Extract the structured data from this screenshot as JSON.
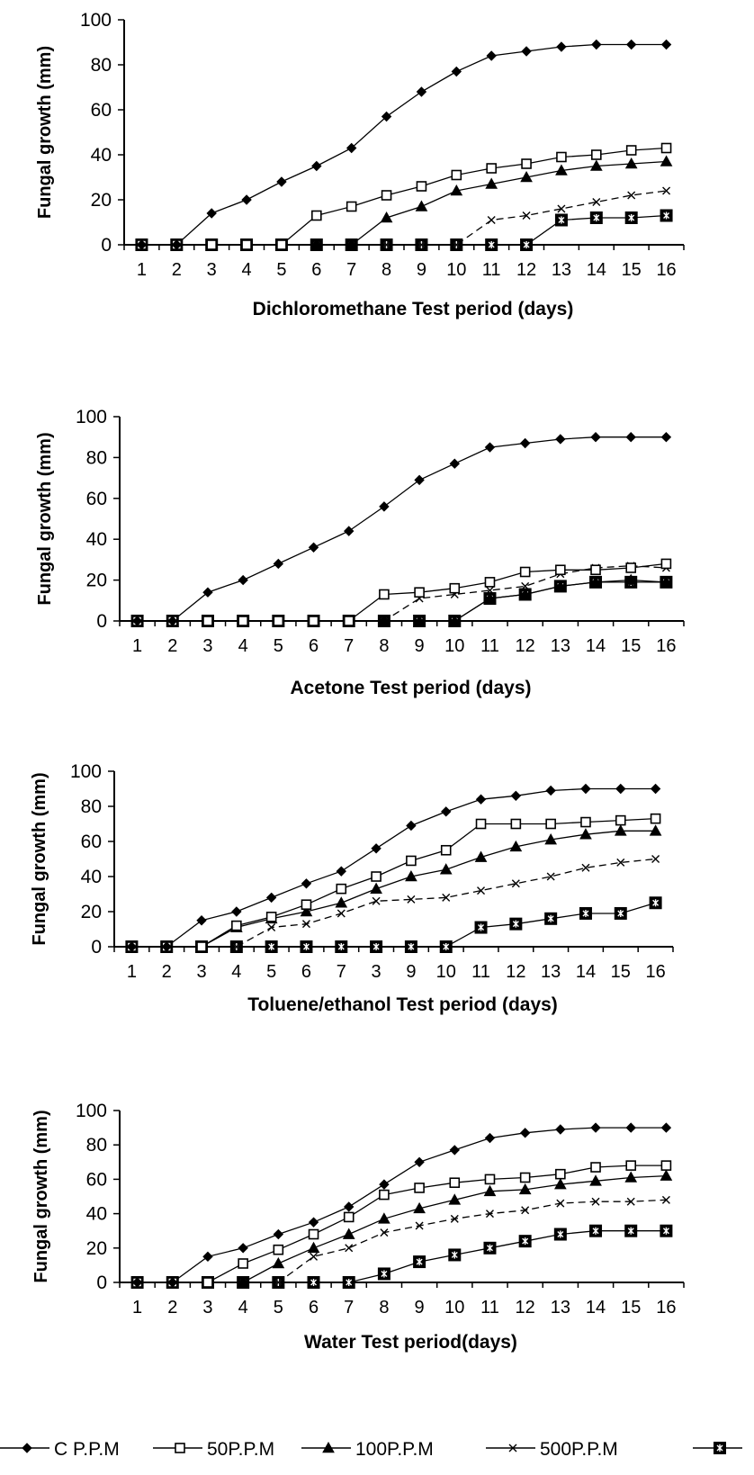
{
  "chart_data": [
    {
      "type": "line",
      "title": "",
      "xlabel": "Dichloromethane Test period (days)",
      "ylabel": "Fungal growth (mm)",
      "ylim": [
        0,
        100
      ],
      "yticks": [
        "0",
        "20",
        "40",
        "60",
        "80",
        "100"
      ],
      "categories": [
        "1",
        "2",
        "3",
        "4",
        "5",
        "6",
        "7",
        "8",
        "9",
        "10",
        "11",
        "12",
        "13",
        "14",
        "15",
        "16"
      ],
      "series": [
        {
          "name": "C P.P.M",
          "values": [
            0,
            0,
            14,
            20,
            28,
            35,
            43,
            57,
            68,
            77,
            84,
            86,
            88,
            89,
            89,
            89
          ]
        },
        {
          "name": "50P.P.M",
          "values": [
            0,
            0,
            0,
            0,
            0,
            13,
            17,
            22,
            26,
            31,
            34,
            36,
            39,
            40,
            42,
            43
          ]
        },
        {
          "name": "100P.P.M",
          "values": [
            0,
            0,
            0,
            0,
            0,
            0,
            0,
            12,
            17,
            24,
            27,
            30,
            33,
            35,
            36,
            37
          ]
        },
        {
          "name": "500P.P.M",
          "values": [
            0,
            0,
            0,
            0,
            0,
            0,
            0,
            0,
            0,
            0,
            11,
            13,
            16,
            19,
            22,
            24
          ]
        },
        {
          "name": "",
          "values": [
            0,
            0,
            0,
            0,
            0,
            0,
            0,
            0,
            0,
            0,
            0,
            0,
            11,
            12,
            12,
            13
          ]
        }
      ]
    },
    {
      "type": "line",
      "title": "",
      "xlabel": "Acetone Test period (days)",
      "ylabel": "Fungal growth (mm)",
      "ylim": [
        0,
        100
      ],
      "yticks": [
        "0",
        "20",
        "40",
        "60",
        "80",
        "100"
      ],
      "categories": [
        "1",
        "2",
        "3",
        "4",
        "5",
        "6",
        "7",
        "8",
        "9",
        "10",
        "11",
        "12",
        "13",
        "14",
        "15",
        "16"
      ],
      "series": [
        {
          "name": "C P.P.M",
          "values": [
            0,
            0,
            14,
            20,
            28,
            36,
            44,
            56,
            69,
            77,
            85,
            87,
            89,
            90,
            90,
            90
          ]
        },
        {
          "name": "50P.P.M",
          "values": [
            0,
            0,
            0,
            0,
            0,
            0,
            0,
            13,
            14,
            16,
            19,
            24,
            25,
            25,
            26,
            28
          ]
        },
        {
          "name": "100P.P.M",
          "values": [
            0,
            0,
            0,
            0,
            0,
            0,
            0,
            0,
            0,
            0,
            11,
            13,
            17,
            19,
            20,
            19
          ]
        },
        {
          "name": "500P.P.M",
          "values": [
            0,
            0,
            0,
            0,
            0,
            0,
            0,
            0,
            11,
            13,
            15,
            17,
            23,
            26,
            27,
            26
          ]
        },
        {
          "name": "",
          "values": [
            0,
            0,
            0,
            0,
            0,
            0,
            0,
            0,
            0,
            0,
            11,
            13,
            17,
            19,
            19,
            19
          ]
        }
      ]
    },
    {
      "type": "line",
      "title": "",
      "xlabel": "Toluene/ethanol Test period (days)",
      "ylabel": "Fungal growth (mm)",
      "ylim": [
        0,
        100
      ],
      "yticks": [
        "0",
        "20",
        "40",
        "60",
        "80",
        "100"
      ],
      "categories": [
        "1",
        "2",
        "3",
        "4",
        "5",
        "6",
        "7",
        "3",
        "9",
        "10",
        "11",
        "12",
        "13",
        "14",
        "15",
        "16"
      ],
      "series": [
        {
          "name": "C P.P.M",
          "values": [
            0,
            0,
            15,
            20,
            28,
            36,
            43,
            56,
            69,
            77,
            84,
            86,
            89,
            90,
            90,
            90
          ]
        },
        {
          "name": "50P.P.M",
          "values": [
            0,
            0,
            0,
            12,
            17,
            24,
            33,
            40,
            49,
            55,
            70,
            70,
            70,
            71,
            72,
            73
          ]
        },
        {
          "name": "100P.P.M",
          "values": [
            0,
            0,
            0,
            11,
            16,
            20,
            25,
            33,
            40,
            44,
            51,
            57,
            61,
            64,
            66,
            66
          ]
        },
        {
          "name": "500P.P.M",
          "values": [
            0,
            0,
            0,
            0,
            11,
            13,
            19,
            26,
            27,
            28,
            32,
            36,
            40,
            45,
            48,
            50
          ]
        },
        {
          "name": "",
          "values": [
            0,
            0,
            0,
            0,
            0,
            0,
            0,
            0,
            0,
            0,
            11,
            13,
            16,
            19,
            19,
            25
          ]
        }
      ]
    },
    {
      "type": "line",
      "title": "",
      "xlabel": "Water Test period(days)",
      "ylabel": "Fungal growth (mm)",
      "ylim": [
        0,
        100
      ],
      "yticks": [
        "0",
        "20",
        "40",
        "60",
        "80",
        "100"
      ],
      "categories": [
        "1",
        "2",
        "3",
        "4",
        "5",
        "6",
        "7",
        "8",
        "9",
        "10",
        "11",
        "12",
        "13",
        "14",
        "15",
        "16"
      ],
      "series": [
        {
          "name": "C P.P.M",
          "values": [
            0,
            0,
            15,
            20,
            28,
            35,
            44,
            57,
            70,
            77,
            84,
            87,
            89,
            90,
            90,
            90
          ]
        },
        {
          "name": "50P.P.M",
          "values": [
            0,
            0,
            0,
            11,
            19,
            28,
            38,
            51,
            55,
            58,
            60,
            61,
            63,
            67,
            68,
            68
          ]
        },
        {
          "name": "100P.P.M",
          "values": [
            0,
            0,
            0,
            0,
            11,
            20,
            28,
            37,
            43,
            48,
            53,
            54,
            57,
            59,
            61,
            62
          ]
        },
        {
          "name": "500P.P.M",
          "values": [
            0,
            0,
            0,
            0,
            0,
            15,
            20,
            29,
            33,
            37,
            40,
            42,
            46,
            47,
            47,
            48
          ]
        },
        {
          "name": "",
          "values": [
            0,
            0,
            0,
            0,
            0,
            0,
            0,
            5,
            12,
            16,
            20,
            24,
            28,
            30,
            30,
            30
          ]
        }
      ]
    }
  ],
  "legend": {
    "entries": [
      "C P.P.M",
      "50P.P.M",
      "100P.P.M",
      "500P.P.M",
      ""
    ],
    "markers": [
      "diamond-filled",
      "square-open",
      "triangle-filled",
      "x",
      "square-star"
    ],
    "placement": "bottom"
  }
}
